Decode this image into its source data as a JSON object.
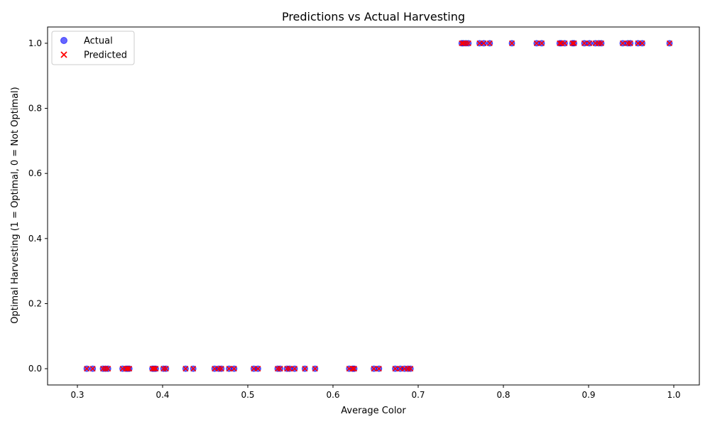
{
  "chart_data": {
    "type": "scatter",
    "title": "Predictions vs Actual Harvesting",
    "xlabel": "Average Color",
    "ylabel": "Optimal Harvesting (1 = Optimal, 0 = Not Optimal)",
    "xlim": [
      0.265,
      1.03
    ],
    "ylim": [
      -0.05,
      1.05
    ],
    "x_ticks": [
      0.3,
      0.4,
      0.5,
      0.6,
      0.7,
      0.8,
      0.9,
      1.0
    ],
    "x_tick_labels": [
      "0.3",
      "0.4",
      "0.5",
      "0.6",
      "0.7",
      "0.8",
      "0.9",
      "1.0"
    ],
    "y_ticks": [
      0.0,
      0.2,
      0.4,
      0.6,
      0.8,
      1.0
    ],
    "y_tick_labels": [
      "0.0",
      "0.2",
      "0.4",
      "0.6",
      "0.8",
      "1.0"
    ],
    "grid": false,
    "legend_position": "upper-left",
    "series": [
      {
        "name": "Actual",
        "marker": "circle",
        "color": "#0000ff",
        "opacity": 0.6,
        "x": [
          0.311,
          0.318,
          0.33,
          0.333,
          0.336,
          0.353,
          0.357,
          0.359,
          0.361,
          0.388,
          0.39,
          0.392,
          0.401,
          0.404,
          0.427,
          0.436,
          0.461,
          0.466,
          0.469,
          0.478,
          0.484,
          0.507,
          0.512,
          0.535,
          0.538,
          0.546,
          0.549,
          0.555,
          0.567,
          0.579,
          0.619,
          0.623,
          0.625,
          0.648,
          0.654,
          0.673,
          0.679,
          0.684,
          0.688,
          0.691,
          0.751,
          0.753,
          0.756,
          0.759,
          0.772,
          0.777,
          0.784,
          0.81,
          0.839,
          0.845,
          0.866,
          0.868,
          0.872,
          0.881,
          0.883,
          0.895,
          0.901,
          0.908,
          0.912,
          0.915,
          0.94,
          0.946,
          0.949,
          0.958,
          0.963,
          0.995
        ],
        "y": [
          0,
          0,
          0,
          0,
          0,
          0,
          0,
          0,
          0,
          0,
          0,
          0,
          0,
          0,
          0,
          0,
          0,
          0,
          0,
          0,
          0,
          0,
          0,
          0,
          0,
          0,
          0,
          0,
          0,
          0,
          0,
          0,
          0,
          0,
          0,
          0,
          0,
          0,
          0,
          0,
          1,
          1,
          1,
          1,
          1,
          1,
          1,
          1,
          1,
          1,
          1,
          1,
          1,
          1,
          1,
          1,
          1,
          1,
          1,
          1,
          1,
          1,
          1,
          1,
          1,
          1
        ]
      },
      {
        "name": "Predicted",
        "marker": "x",
        "color": "#ff0000",
        "opacity": 1.0,
        "x": [
          0.311,
          0.318,
          0.33,
          0.333,
          0.336,
          0.353,
          0.357,
          0.359,
          0.361,
          0.388,
          0.39,
          0.392,
          0.401,
          0.404,
          0.427,
          0.436,
          0.461,
          0.466,
          0.469,
          0.478,
          0.484,
          0.507,
          0.512,
          0.535,
          0.538,
          0.546,
          0.549,
          0.555,
          0.567,
          0.579,
          0.619,
          0.623,
          0.625,
          0.648,
          0.654,
          0.673,
          0.679,
          0.684,
          0.688,
          0.691,
          0.751,
          0.753,
          0.756,
          0.759,
          0.772,
          0.777,
          0.784,
          0.81,
          0.839,
          0.845,
          0.866,
          0.868,
          0.872,
          0.881,
          0.883,
          0.895,
          0.901,
          0.908,
          0.912,
          0.915,
          0.94,
          0.946,
          0.949,
          0.958,
          0.963,
          0.995
        ],
        "y": [
          0,
          0,
          0,
          0,
          0,
          0,
          0,
          0,
          0,
          0,
          0,
          0,
          0,
          0,
          0,
          0,
          0,
          0,
          0,
          0,
          0,
          0,
          0,
          0,
          0,
          0,
          0,
          0,
          0,
          0,
          0,
          0,
          0,
          0,
          0,
          0,
          0,
          0,
          0,
          0,
          1,
          1,
          1,
          1,
          1,
          1,
          1,
          1,
          1,
          1,
          1,
          1,
          1,
          1,
          1,
          1,
          1,
          1,
          1,
          1,
          1,
          1,
          1,
          1,
          1,
          1
        ]
      }
    ]
  }
}
